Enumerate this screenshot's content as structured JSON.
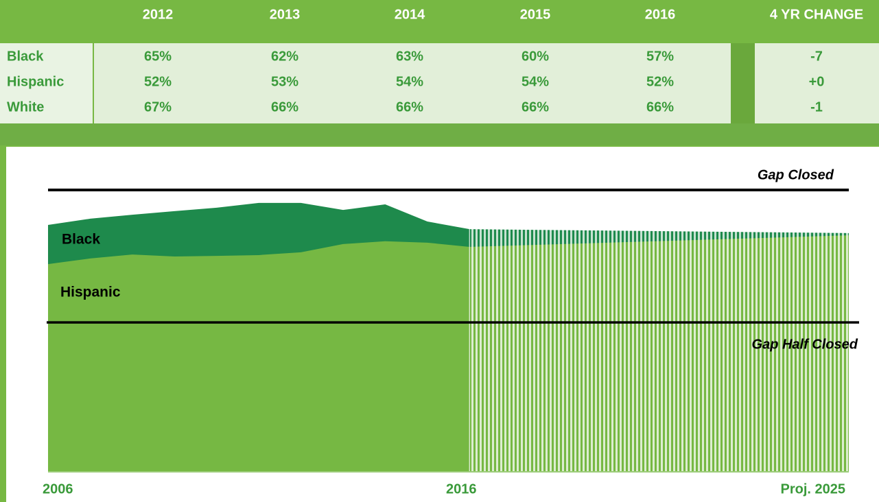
{
  "table": {
    "columns": [
      "2012",
      "2013",
      "2014",
      "2015",
      "2016",
      "4 YR CHANGE"
    ],
    "rows": [
      {
        "label": "Black",
        "cells": [
          "65%",
          "62%",
          "63%",
          "60%",
          "57%",
          "-7"
        ]
      },
      {
        "label": "Hispanic",
        "cells": [
          "52%",
          "53%",
          "54%",
          "54%",
          "52%",
          "+0"
        ]
      },
      {
        "label": "White",
        "cells": [
          "67%",
          "66%",
          "66%",
          "66%",
          "66%",
          "-1"
        ]
      }
    ]
  },
  "chart_data": {
    "type": "area",
    "x": [
      2006,
      2007,
      2008,
      2009,
      2010,
      2011,
      2012,
      2013,
      2014,
      2015,
      2016,
      2025
    ],
    "series": [
      {
        "name": "Black",
        "color": "#1e8a4c",
        "values": [
          87.6,
          89.8,
          91.2,
          92.5,
          93.7,
          95.4,
          95.4,
          92.9,
          94.9,
          88.8,
          86.1,
          84.7
        ]
      },
      {
        "name": "Hispanic",
        "color": "#76b843",
        "values": [
          73.7,
          75.7,
          77.1,
          76.4,
          76.6,
          76.9,
          77.9,
          80.8,
          81.8,
          81.3,
          79.8,
          83.9
        ]
      }
    ],
    "projection_start": 2016,
    "reference_lines": [
      {
        "label": "Gap Closed",
        "value": 100
      },
      {
        "label": "Gap Half Closed",
        "value": 53
      }
    ],
    "xlim": [
      2006,
      2025
    ],
    "xticks": [
      2006,
      2016,
      {
        "value": 2025,
        "label": "Proj. 2025"
      }
    ],
    "ylim": [
      0,
      100
    ]
  }
}
